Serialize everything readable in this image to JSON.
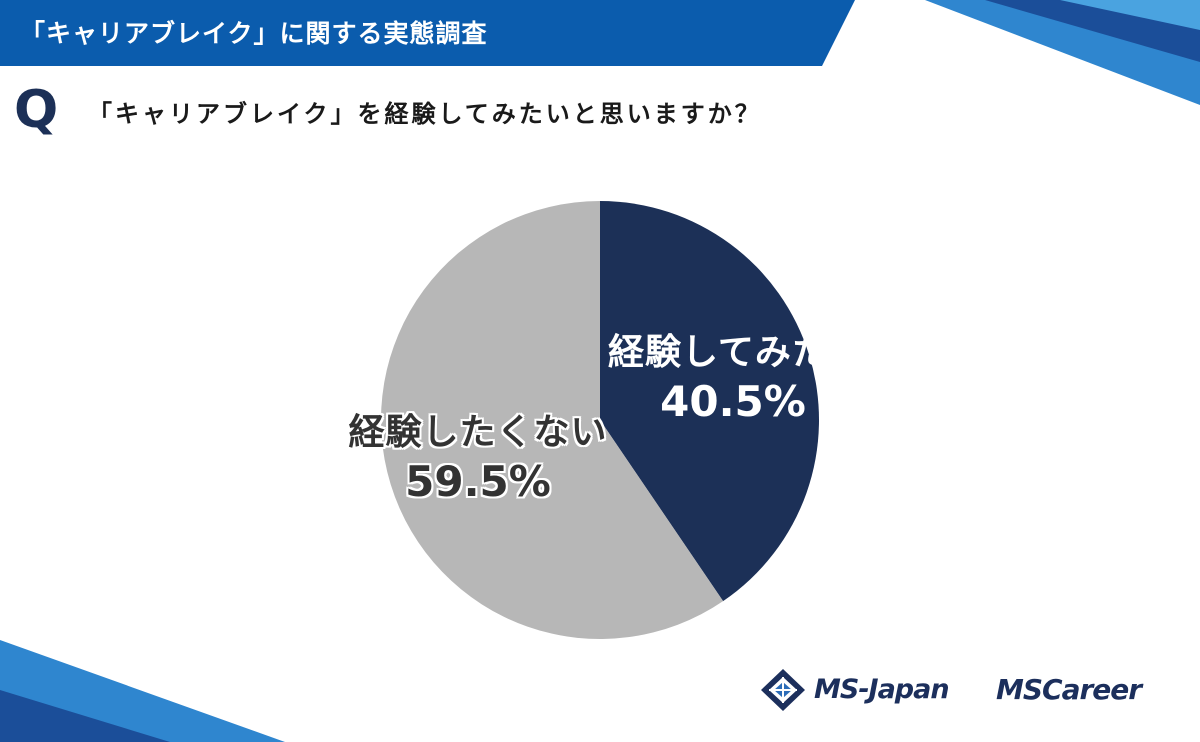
{
  "header": {
    "survey_title": "「キャリアブレイク」に関する実態調査"
  },
  "question": {
    "mark": "Q",
    "text": "「キャリアブレイク」を経験してみたいと思いますか？"
  },
  "chart_data": {
    "type": "pie",
    "title": "",
    "categories": [
      "経験してみたい",
      "経験したくない"
    ],
    "values": [
      40.5,
      59.5
    ],
    "value_labels": [
      "40.5%",
      "59.5%"
    ],
    "colors": [
      "#1c3057",
      "#b7b7b7"
    ],
    "start": "12 o'clock",
    "direction": "clockwise",
    "legend": "none"
  },
  "logos": {
    "msjapan": "MS-Japan",
    "mscareer": "MSCareer"
  },
  "colors": {
    "header_blue": "#0b5cad",
    "navy": "#1c3057",
    "gray": "#b7b7b7"
  }
}
